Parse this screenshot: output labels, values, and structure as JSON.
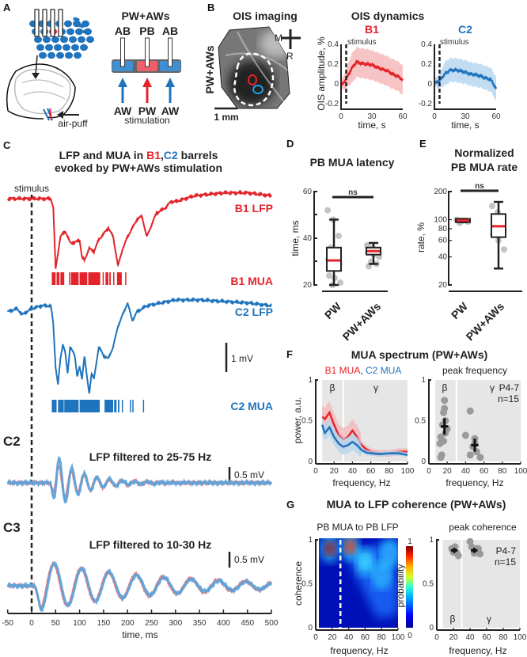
{
  "figure": {
    "A": {
      "label": "A",
      "title": "PW+AWs",
      "barrels": [
        "AB",
        "PB",
        "AB"
      ],
      "whiskers": [
        "AW",
        "PW",
        "AW"
      ],
      "stimulation": "stimulation",
      "airpuff": "air-puff"
    },
    "B": {
      "label": "B",
      "imaging_title": "OIS imaging",
      "condition": "PW+AWs",
      "scale": "1 mm",
      "orient_m": "M",
      "orient_r": "R",
      "dynamics_title": "OIS dynamics",
      "b1": "B1",
      "c2": "C2",
      "stimulus": "stimulus",
      "ylabel": "OIS amplitude, %",
      "xlabel": "time, s"
    },
    "C": {
      "label": "C",
      "title_1a": "LFP and MUA in ",
      "title_1b": "B1",
      "title_1c": ",",
      "title_1d": "C2",
      "title_1e": " barrels",
      "title_2": "evoked by PW+AWs stimulation",
      "stimulus": "stimulus",
      "b1_lfp": "B1 LFP",
      "b1_mua": "B1 MUA",
      "c2_lfp": "C2 LFP",
      "c2_mua": "C2 MUA",
      "scale_1mv": "1 mV",
      "c2_label": "C2",
      "c2_title": "LFP filtered to 25-75 Hz",
      "c2_scale": "0.5 mV",
      "c3_label": "C3",
      "c3_title": "LFP filtered to 10-30 Hz",
      "c3_scale": "0.5 mV",
      "xlabel": "time, ms",
      "xticks": [
        "-50",
        "0",
        "50",
        "100",
        "150",
        "200",
        "250",
        "300",
        "350",
        "400",
        "450",
        "500"
      ]
    },
    "D": {
      "label": "D",
      "title": "PB MUA latency",
      "ylabel": "time, ms",
      "yticks": [
        "60",
        "40",
        "20"
      ],
      "ns": "ns",
      "cats": [
        "PW",
        "PW+AWs"
      ]
    },
    "E": {
      "label": "E",
      "title_1": "Normalized",
      "title_2": "PB MUA rate",
      "ylabel": "rate, %",
      "yticks": [
        "200",
        "100",
        "80",
        "60",
        "40",
        "20"
      ],
      "ns": "ns",
      "cats": [
        "PW",
        "PW+AWs"
      ]
    },
    "F": {
      "label": "F",
      "title": "MUA spectrum (PW+AWs)",
      "legend_b1": "B1 MUA",
      "legend_sep": ",",
      "legend_c2": "C2 MUA",
      "right_title": "peak frequency",
      "ylabel": "power, a.u.",
      "xlabel": "frequency, Hz",
      "beta": "β",
      "gamma": "γ",
      "age": "P4-7",
      "n": "n=15",
      "yticks": [
        "1",
        "0.5",
        "0"
      ],
      "xticks": [
        "0",
        "20",
        "40",
        "60",
        "80",
        "100"
      ]
    },
    "G": {
      "label": "G",
      "title": "MUA to LFP coherence (PW+AWs)",
      "left_title": "PB MUA to PB LFP",
      "right_title": "peak coherence",
      "ylabel": "coherence",
      "xlabel": "frequency, Hz",
      "cbar_label": "probability",
      "cbar_max": "1",
      "cbar_min": "0",
      "beta": "β",
      "gamma": "γ",
      "age": "P4-7",
      "n": "n=15",
      "yticks": [
        "1",
        "0.5",
        "0"
      ],
      "xticks": [
        "0",
        "20",
        "40",
        "60",
        "80",
        "100"
      ]
    }
  },
  "colors": {
    "b1": "#e3242b",
    "c2": "#1f74bd",
    "b1_light": "#f5b5b7",
    "c2_light": "#b3d5ef",
    "shade": "#e6e6e6",
    "dots": "#9a9a9a"
  },
  "chart_data": [
    {
      "panel": "B-B1",
      "type": "line",
      "title": "B1",
      "xlabel": "time, s",
      "ylabel": "OIS amplitude, %",
      "xlim": [
        0,
        60
      ],
      "ylim": [
        -0.2,
        0.4
      ],
      "stimulus_s": 5,
      "x": [
        0,
        5,
        10,
        15,
        20,
        25,
        30,
        35,
        40,
        45,
        50,
        55,
        60
      ],
      "mean": [
        -0.02,
        0.05,
        0.15,
        0.22,
        0.21,
        0.2,
        0.19,
        0.17,
        0.15,
        0.13,
        0.1,
        0.08,
        0.04
      ],
      "sd": 0.15
    },
    {
      "panel": "B-C2",
      "type": "line",
      "title": "C2",
      "xlabel": "time, s",
      "xlim": [
        0,
        60
      ],
      "ylim": [
        -0.2,
        0.4
      ],
      "stimulus_s": 5,
      "x": [
        0,
        5,
        10,
        15,
        20,
        25,
        30,
        35,
        40,
        45,
        50,
        55,
        60
      ],
      "mean": [
        0.01,
        0.03,
        0.1,
        0.14,
        0.14,
        0.13,
        0.12,
        0.1,
        0.09,
        0.08,
        0.06,
        0.04,
        -0.05
      ],
      "sd": 0.12
    },
    {
      "panel": "C",
      "type": "line",
      "xlabel": "time, ms",
      "xlim": [
        -50,
        500
      ],
      "unit": "mV",
      "b1_lfp": {
        "t": [
          -50,
          0,
          40,
          45,
          50,
          60,
          70,
          80,
          90,
          100,
          105,
          110,
          120,
          130,
          140,
          150,
          160,
          170,
          180,
          190,
          200,
          210,
          220,
          230,
          240,
          250,
          260,
          270,
          280,
          290,
          300,
          340,
          400,
          450,
          500
        ],
        "v": [
          0,
          0,
          0,
          -0.3,
          -2.4,
          -1.3,
          -1.1,
          -1.5,
          -1.5,
          -1.4,
          -2.0,
          -2.1,
          -1.7,
          -1.8,
          -1.4,
          -1.2,
          -1.0,
          -1.3,
          -2.3,
          -1.7,
          -1.3,
          -1.0,
          -0.7,
          -0.6,
          -1.3,
          -0.9,
          -0.5,
          -0.4,
          -0.3,
          -0.1,
          -0.1,
          0.1,
          0.2,
          0.2,
          0.1
        ]
      },
      "c2_lfp": {
        "t": [
          -50,
          -30,
          -20,
          -10,
          0,
          20,
          40,
          45,
          50,
          55,
          60,
          65,
          70,
          75,
          80,
          90,
          95,
          100,
          105,
          110,
          115,
          120,
          125,
          130,
          140,
          150,
          160,
          170,
          180,
          190,
          200,
          210,
          220,
          240,
          300,
          350,
          450,
          500
        ],
        "v": [
          -0.1,
          0,
          -0.2,
          -0.1,
          0,
          0.1,
          0.1,
          -0.5,
          -2.0,
          -2.6,
          -1.7,
          -1.2,
          -1.5,
          -2.2,
          -1.3,
          -1.6,
          -2.3,
          -2.0,
          -2.4,
          -1.6,
          -2.3,
          -2.9,
          -2.2,
          -2.4,
          -1.3,
          -1.6,
          -1.7,
          -1.3,
          -0.6,
          -0.2,
          0.2,
          -0.4,
          -0.1,
          0.1,
          0.3,
          0.3,
          0.2,
          0.1
        ]
      },
      "b1_mua_bursts_ms": [
        [
          42,
          50
        ],
        [
          52,
          58
        ],
        [
          60,
          68
        ],
        [
          78,
          80
        ],
        [
          82,
          98
        ],
        [
          100,
          116
        ],
        [
          118,
          143
        ],
        [
          148,
          150
        ],
        [
          154,
          160
        ],
        [
          162,
          165
        ],
        [
          170,
          172
        ],
        [
          178,
          188
        ],
        [
          195,
          197
        ]
      ],
      "c2_mua_bursts_ms": [
        [
          42,
          52
        ],
        [
          55,
          67
        ],
        [
          68,
          98
        ],
        [
          100,
          142
        ],
        [
          152,
          170
        ],
        [
          172,
          177
        ],
        [
          180,
          183
        ],
        [
          188,
          190
        ],
        [
          205,
          207
        ],
        [
          210,
          212
        ],
        [
          232,
          234
        ]
      ]
    },
    {
      "panel": "C2",
      "type": "line",
      "title": "LFP filtered to 25-75 Hz",
      "unit": "mV",
      "series": [
        {
          "name": "B1",
          "freq_hz": 38,
          "amp_mv": 0.7,
          "onset_ms": 38,
          "decay_ms": 70,
          "phase": 0.3
        },
        {
          "name": "C2",
          "freq_hz": 38,
          "amp_mv": 1.1,
          "onset_ms": 38,
          "decay_ms": 55,
          "phase": 0
        }
      ]
    },
    {
      "panel": "C3",
      "type": "line",
      "title": "LFP filtered to 10-30 Hz",
      "unit": "mV",
      "series": [
        {
          "name": "B1",
          "freq_hz": 17.5,
          "amp_mv": 0.8,
          "onset_ms": 5,
          "decay_ms": 260,
          "phase": 0.25
        },
        {
          "name": "C2",
          "freq_hz": 17.5,
          "amp_mv": 0.85,
          "onset_ms": 5,
          "decay_ms": 230,
          "phase": 0
        }
      ]
    },
    {
      "panel": "D",
      "type": "box",
      "title": "PB MUA latency",
      "ylabel": "time, ms",
      "ylim": [
        20,
        60
      ],
      "categories": [
        "PW",
        "PW+AWs"
      ],
      "boxes": [
        {
          "min": 20,
          "q1": 26,
          "median": 30.5,
          "q3": 36,
          "max": 48,
          "points": [
            52,
            48,
            41,
            36,
            32,
            31,
            30,
            29,
            28,
            27,
            24,
            23,
            21,
            20
          ]
        },
        {
          "min": 29,
          "q1": 33,
          "median": 34.5,
          "q3": 36,
          "max": 38,
          "points": [
            37,
            36,
            35,
            35,
            34,
            34,
            33,
            32,
            30,
            29,
            28
          ]
        }
      ],
      "significance": "ns"
    },
    {
      "panel": "E",
      "type": "box",
      "title": "Normalized PB MUA rate",
      "ylabel": "rate, %",
      "ylim": [
        20,
        200
      ],
      "yscale": "log",
      "categories": [
        "PW",
        "PW+AWs"
      ],
      "boxes": [
        {
          "min": 94,
          "q1": 94,
          "median": 98,
          "q3": 102,
          "max": 102,
          "points": [
            100,
            97,
            95,
            92
          ]
        },
        {
          "min": 30,
          "q1": 65,
          "median": 85,
          "q3": 115,
          "max": 155,
          "points": [
            140,
            120,
            100,
            90,
            80,
            70,
            60,
            48
          ]
        }
      ],
      "significance": "ns"
    },
    {
      "panel": "F-left",
      "type": "line",
      "xlabel": "frequency, Hz",
      "ylabel": "power, a.u.",
      "xlim": [
        0,
        100
      ],
      "ylim": [
        0,
        1
      ],
      "band_split_hz": 30,
      "x": [
        7,
        10,
        15,
        20,
        25,
        30,
        35,
        40,
        45,
        50,
        55,
        60,
        70,
        80,
        90,
        100
      ],
      "series": [
        {
          "name": "B1 MUA",
          "values": [
            0.55,
            0.52,
            0.6,
            0.45,
            0.32,
            0.27,
            0.3,
            0.38,
            0.3,
            0.2,
            0.15,
            0.12,
            0.1,
            0.1,
            0.12,
            0.12
          ],
          "err": 0.07
        },
        {
          "name": "C2 MUA",
          "values": [
            0.45,
            0.35,
            0.42,
            0.3,
            0.22,
            0.18,
            0.2,
            0.24,
            0.2,
            0.14,
            0.11,
            0.1,
            0.09,
            0.1,
            0.1,
            0.08
          ],
          "err": 0.05
        }
      ]
    },
    {
      "panel": "F-right",
      "type": "scatter",
      "title": "peak frequency",
      "xlim": [
        0,
        100
      ],
      "ylim": [
        0,
        1
      ],
      "points": [
        [
          17,
          0.75
        ],
        [
          17,
          0.65
        ],
        [
          16,
          0.6
        ],
        [
          18,
          0.5
        ],
        [
          15,
          0.45
        ],
        [
          20,
          0.4
        ],
        [
          13,
          0.3
        ],
        [
          16,
          0.25
        ],
        [
          12,
          0.22
        ],
        [
          18,
          0.35
        ],
        [
          14,
          0.08
        ],
        [
          13,
          0.05
        ],
        [
          45,
          0.62
        ],
        [
          40,
          0.32
        ],
        [
          50,
          0.22
        ],
        [
          48,
          0.18
        ],
        [
          52,
          0.12
        ],
        [
          45,
          0.08
        ],
        [
          56,
          0.05
        ],
        [
          50,
          0.28
        ]
      ],
      "means": [
        {
          "x": 17,
          "y": 0.43,
          "ex": 2,
          "ey": 0.1
        },
        {
          "x": 50,
          "y": 0.2,
          "ex": 2,
          "ey": 0.08
        }
      ]
    },
    {
      "panel": "G-left",
      "type": "heatmap",
      "title": "PB MUA to PB LFP",
      "xlabel": "frequency, Hz",
      "ylabel": "coherence",
      "xlim": [
        0,
        100
      ],
      "ylim": [
        0,
        1
      ],
      "colorbar": [
        0,
        1
      ],
      "band_split_hz": 30,
      "hotspots": [
        {
          "x": 17,
          "y": 0.9,
          "p": 1.0
        },
        {
          "x": 42,
          "y": 0.92,
          "p": 0.85
        },
        {
          "x": 60,
          "y": 0.75,
          "p": 0.35
        },
        {
          "x": 80,
          "y": 0.6,
          "p": 0.3
        },
        {
          "x": 90,
          "y": 0.85,
          "p": 0.25
        }
      ]
    },
    {
      "panel": "G-right",
      "type": "scatter",
      "title": "peak coherence",
      "xlim": [
        0,
        100
      ],
      "ylim": [
        0,
        1
      ],
      "points": [
        [
          18,
          0.9
        ],
        [
          22,
          0.92
        ],
        [
          20,
          0.86
        ],
        [
          24,
          0.85
        ],
        [
          26,
          0.82
        ],
        [
          40,
          0.98
        ],
        [
          42,
          0.92
        ],
        [
          48,
          0.9
        ],
        [
          45,
          0.85
        ],
        [
          52,
          0.84
        ],
        [
          50,
          0.9
        ]
      ],
      "means": [
        {
          "x": 21,
          "y": 0.88,
          "ex": 2,
          "ey": 0.03
        },
        {
          "x": 45,
          "y": 0.88,
          "ex": 2,
          "ey": 0.03
        }
      ]
    }
  ]
}
